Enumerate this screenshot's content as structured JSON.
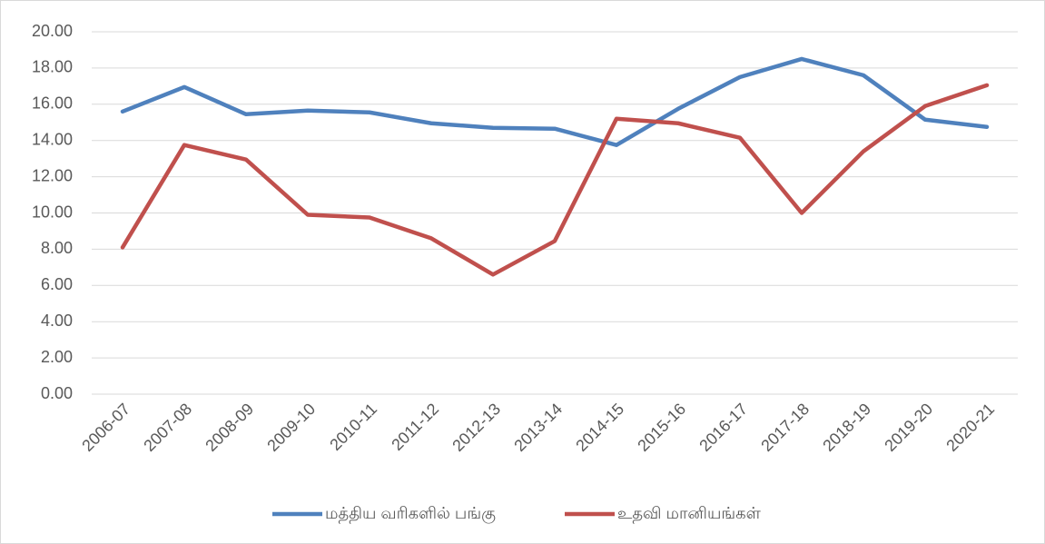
{
  "chart_data": {
    "type": "line",
    "categories": [
      "2006-07",
      "2007-08",
      "2008-09",
      "2009-10",
      "2010-11",
      "2011-12",
      "2012-13",
      "2013-14",
      "2014-15",
      "2015-16",
      "2016-17",
      "2017-18",
      "2018-19",
      "2019-20",
      "2020-21"
    ],
    "series": [
      {
        "name": "மத்திய வரிகளில் பங்கு",
        "color": "#4f81bd",
        "values": [
          15.6,
          16.95,
          15.45,
          15.65,
          15.55,
          14.95,
          14.7,
          14.65,
          13.75,
          15.75,
          17.5,
          18.5,
          17.6,
          15.15,
          14.75
        ]
      },
      {
        "name": "உதவி மானியங்கள்",
        "color": "#c0504d",
        "values": [
          8.1,
          13.75,
          12.95,
          9.9,
          9.75,
          8.6,
          6.6,
          8.45,
          15.2,
          14.95,
          14.15,
          10.0,
          13.4,
          15.9,
          17.05
        ]
      }
    ],
    "ylim": [
      0,
      20
    ],
    "yticks": [
      {
        "value": 0,
        "label": "0.00"
      },
      {
        "value": 2,
        "label": "2.00"
      },
      {
        "value": 4,
        "label": "4.00"
      },
      {
        "value": 6,
        "label": "6.00"
      },
      {
        "value": 8,
        "label": "8.00"
      },
      {
        "value": 10,
        "label": "10.00"
      },
      {
        "value": 12,
        "label": "12.00"
      },
      {
        "value": 14,
        "label": "14.00"
      },
      {
        "value": 16,
        "label": "16.00"
      },
      {
        "value": 18,
        "label": "18.00"
      },
      {
        "value": 20,
        "label": "20.00"
      }
    ],
    "grid": true,
    "legend": "bottom"
  }
}
